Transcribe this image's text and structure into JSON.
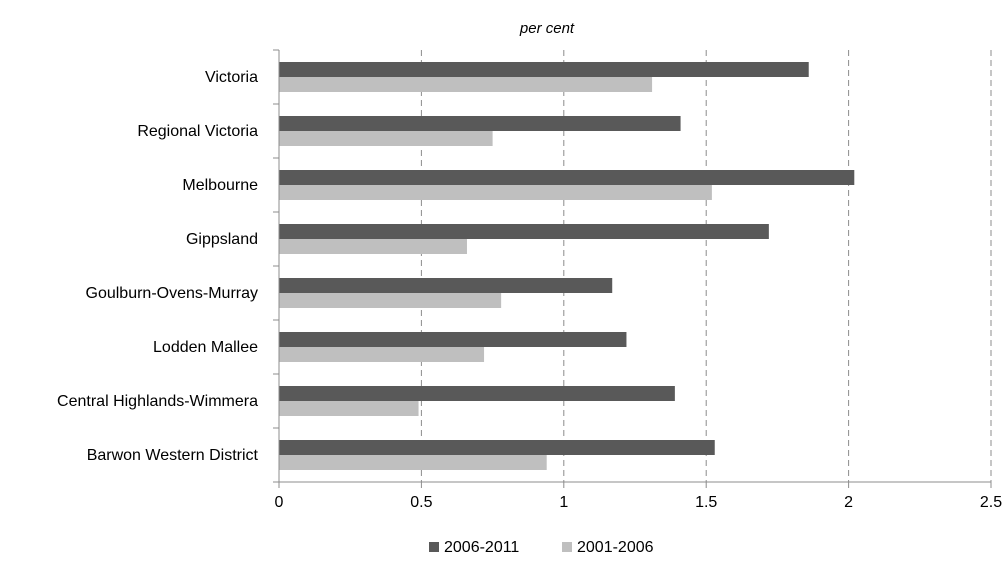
{
  "chart_data": {
    "type": "bar",
    "orientation": "horizontal",
    "unit_label": "per cent",
    "title": "",
    "xlabel": "",
    "ylabel": "",
    "categories": [
      "Victoria",
      "Regional Victoria",
      "Melbourne",
      "Gippsland",
      "Goulburn-Ovens-Murray",
      "Lodden Mallee",
      "Central Highlands-Wimmera",
      "Barwon Western District"
    ],
    "series": [
      {
        "name": "2006-2011",
        "color": "#595959",
        "values": [
          1.86,
          1.41,
          2.02,
          1.72,
          1.17,
          1.22,
          1.39,
          1.53
        ]
      },
      {
        "name": "2001-2006",
        "color": "#bfbfbf",
        "values": [
          1.31,
          0.75,
          1.52,
          0.66,
          0.78,
          0.72,
          0.49,
          0.94
        ]
      }
    ],
    "xlim": [
      0,
      2.5
    ],
    "xticks": [
      "0",
      "0.5",
      "1",
      "1.5",
      "2",
      "2.5"
    ],
    "gridlines": "vertical dashed",
    "legend_position": "bottom"
  }
}
